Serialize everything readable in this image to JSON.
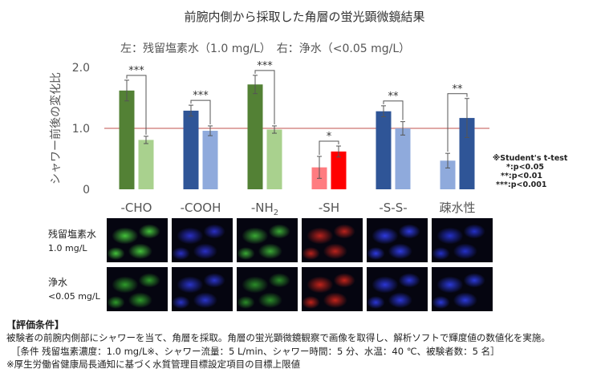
{
  "title": "前腕内側から採取した角層の蛍光顕微鏡結果",
  "subtitle": "左：残留塩素水（1.0 mg/L）　右：浄水（<0.05 mg/L）",
  "colors": {
    "bg": "#ffffff",
    "reference_line": "#c0504d",
    "axis_text": "#666666"
  },
  "chart_data": {
    "type": "bar",
    "ylabel": "シャワー前後の変化比",
    "ylim": [
      0,
      2.0
    ],
    "yticks": [
      "0",
      "1.0",
      "2.0"
    ],
    "reference_line": 1.0,
    "categories": [
      "-CHO",
      "-COOH",
      "-NH2",
      "-SH",
      "-S-S-",
      "疎水性"
    ],
    "category_labels": [
      {
        "main": "-CHO",
        "sub": ""
      },
      {
        "main": "-COOH",
        "sub": ""
      },
      {
        "main": "-NH",
        "sub": "2"
      },
      {
        "main": "-SH",
        "sub": ""
      },
      {
        "main": "-S-S-",
        "sub": ""
      },
      {
        "main": "疎水性",
        "sub": ""
      }
    ],
    "series": [
      {
        "name": "残留塩素水",
        "values": [
          1.62,
          1.29,
          1.72,
          0.36,
          1.28,
          0.47
        ],
        "errors": [
          0.17,
          0.09,
          0.15,
          0.18,
          0.09,
          0.12
        ]
      },
      {
        "name": "浄水",
        "values": [
          0.81,
          0.96,
          0.98,
          0.62,
          1.0,
          1.17
        ],
        "errors": [
          0.06,
          0.08,
          0.06,
          0.09,
          0.11,
          0.32
        ]
      }
    ],
    "bar_colors": [
      [
        "#538135",
        "#a9d18e"
      ],
      [
        "#2f5597",
        "#8faadc"
      ],
      [
        "#538135",
        "#a9d18e"
      ],
      [
        "#ff7c80",
        "#ff0000"
      ],
      [
        "#2f5597",
        "#8faadc"
      ],
      [
        "#8faadc",
        "#2f5597"
      ]
    ],
    "significance": [
      "***",
      "***",
      "***",
      "*",
      "**",
      "**"
    ]
  },
  "stats_note": [
    "※Student's t-test",
    "*:p<0.05",
    "**:p<0.01",
    "***:p<0.001"
  ],
  "image_rows": [
    {
      "label": "残留塩素水",
      "sublabel": "1.0 mg/L"
    },
    {
      "label": "浄水",
      "sublabel": "<0.05 mg/L"
    }
  ],
  "image_tints": [
    [
      "#44c23a",
      "#2a2fc4",
      "#3aa934",
      "#b8221c",
      "#2e3adf",
      "#2430c8"
    ],
    [
      "#2f9b2a",
      "#2a34c9",
      "#2b8c28",
      "#c0231a",
      "#2b36d6",
      "#2b39d8"
    ]
  ],
  "footer": {
    "heading": "【評価条件】",
    "line1": "被験者の前腕内側部にシャワーを当て、角層を採取。角層の蛍光顕微鏡観察で画像を取得し、解析ソフトで輝度値の数値化を実施。",
    "line2": "［条件 残留塩素濃度：1.0 mg/L※、シャワー流量：5 L/min、シャワー時間：5 分、水温：40 ℃、被験者数：5 名］",
    "line3": "※厚生労働省健康局長通知に基づく水質管理目標設定項目の目標上限値"
  }
}
